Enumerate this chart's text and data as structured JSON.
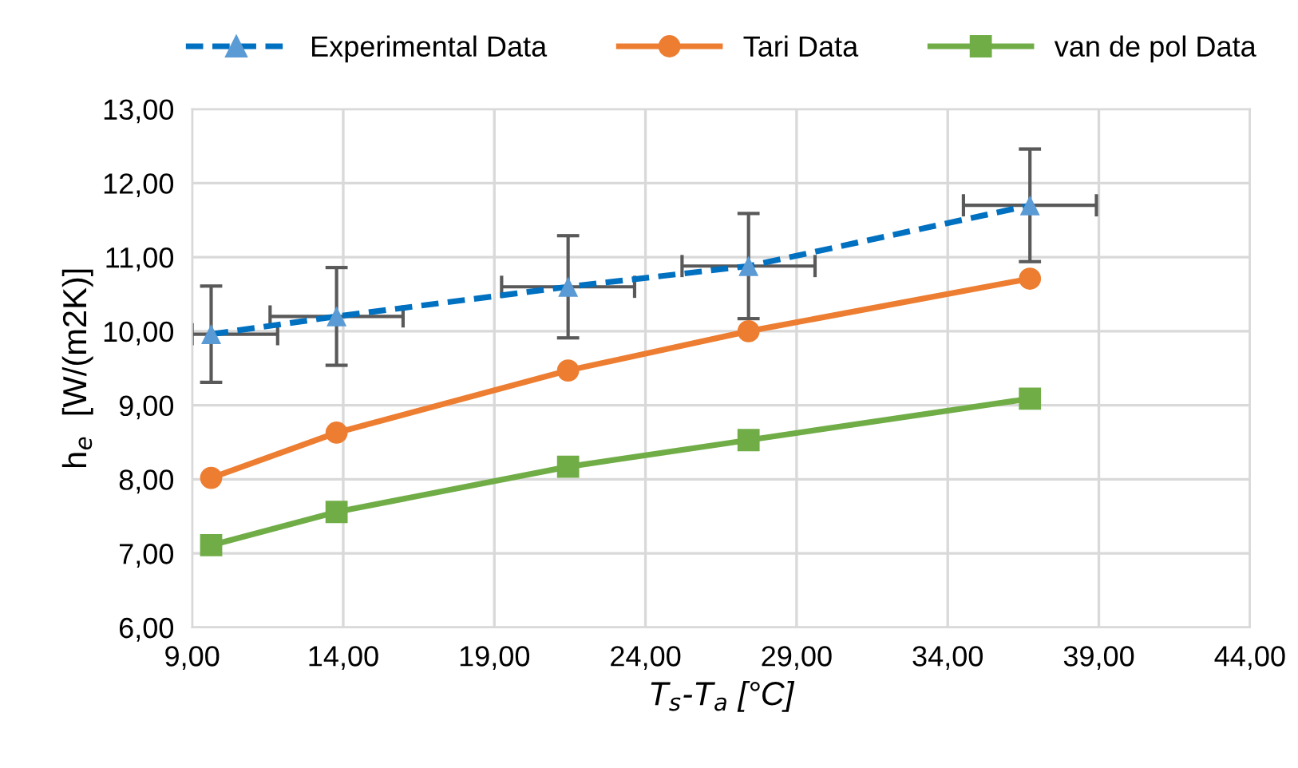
{
  "chart_data": {
    "type": "line",
    "xlabel": "T$_{s}$-T$_{a}$ [°C]",
    "ylabel": "h$_{e}$  [W/(m2K)]",
    "x": [
      9.63,
      13.78,
      21.44,
      27.41,
      36.72
    ],
    "series": [
      {
        "name": "Experimental Data",
        "color": "#0070c0",
        "colors": [
          "#5b9bd5",
          "#5b9bd5",
          "#5b9bd5",
          "#5b9bd5",
          "#5b9bd5"
        ],
        "marker": "triangle",
        "line_style": "dashed",
        "values": [
          9.96,
          10.2,
          10.6,
          10.88,
          11.7
        ],
        "errors": [
          0.65,
          0.66,
          0.69,
          0.71,
          0.76
        ],
        "xerrors": [
          [
            9.0,
            11.83
          ],
          2.2,
          2.2,
          2.2,
          2.2
        ]
      },
      {
        "name": "Tari Data",
        "color": "#ed7d31",
        "marker": "circle",
        "line_style": "solid",
        "values": [
          8.02,
          8.63,
          9.47,
          10.0,
          10.71
        ]
      },
      {
        "name": "van de pol Data",
        "color": "#70ad47",
        "marker": "square",
        "line_style": "solid",
        "values": [
          7.11,
          7.56,
          8.17,
          8.53,
          9.09
        ]
      }
    ],
    "xlim": [
      9,
      44
    ],
    "ylim": [
      6,
      13
    ],
    "xticks": [
      {
        "value": 9,
        "label": "9,00"
      },
      {
        "value": 14,
        "label": "14,00"
      },
      {
        "value": 19,
        "label": "19,00"
      },
      {
        "value": 24,
        "label": "24,00"
      },
      {
        "value": 29,
        "label": "29,00"
      },
      {
        "value": 34,
        "label": "34,00"
      },
      {
        "value": 39,
        "label": "39,00"
      },
      {
        "value": 44,
        "label": "44,00"
      }
    ],
    "yticks": [
      {
        "value": 6,
        "label": "6,00"
      },
      {
        "value": 7,
        "label": "7,00"
      },
      {
        "value": 8,
        "label": "8,00"
      },
      {
        "value": 9,
        "label": "9,00"
      },
      {
        "value": 10,
        "label": "10,00"
      },
      {
        "value": 11,
        "label": "11,00"
      },
      {
        "value": 12,
        "label": "12,00"
      },
      {
        "value": 13,
        "label": "13,00"
      }
    ],
    "grid": true,
    "legend": "top"
  }
}
